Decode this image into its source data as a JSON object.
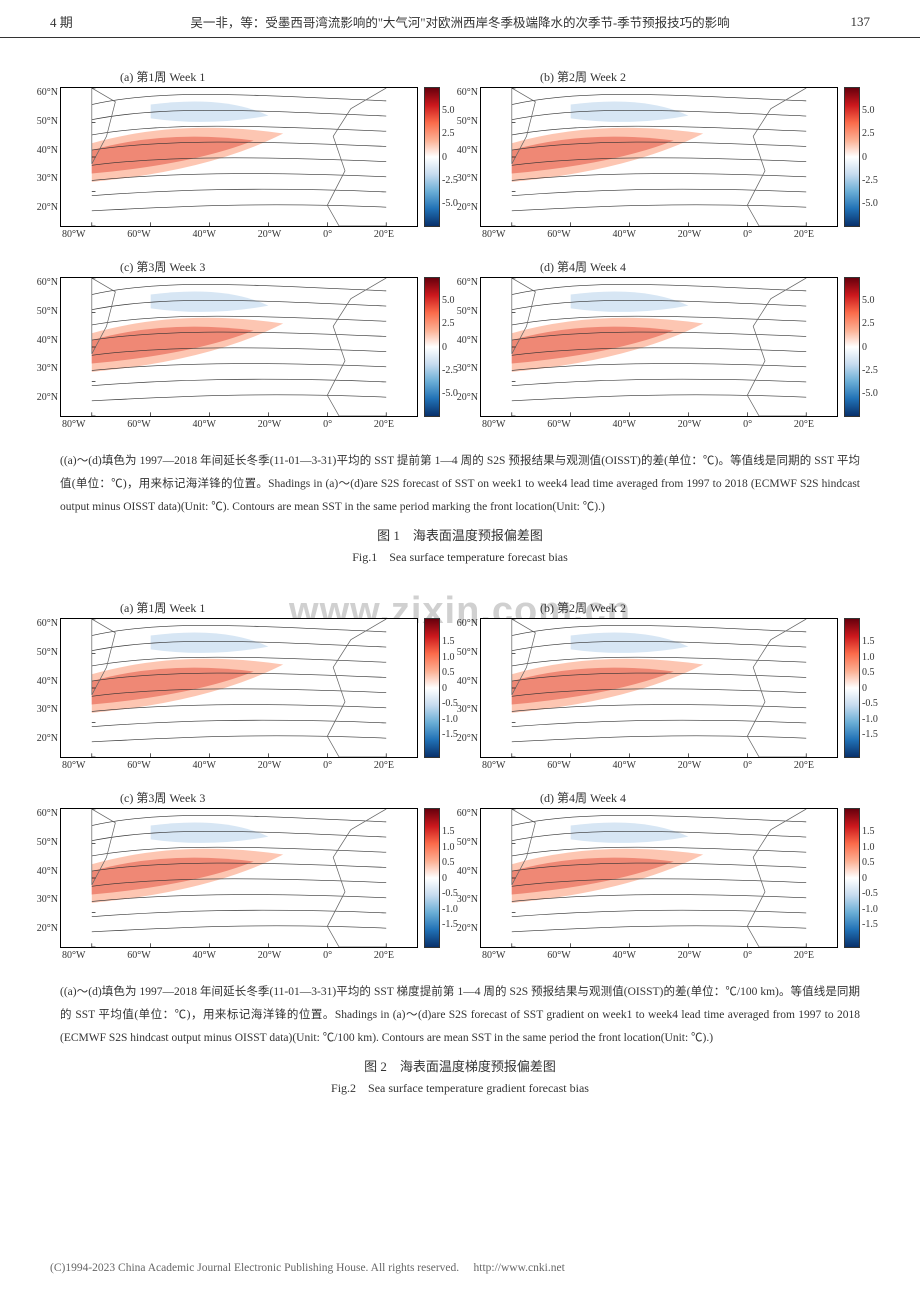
{
  "header": {
    "issue": "4 期",
    "running_title": "吴一非，等：受墨西哥湾流影响的\"大气河\"对欧洲西岸冬季极端降水的次季节-季节预报技巧的影响",
    "page_number": "137"
  },
  "figure1": {
    "panels": [
      {
        "id": "a",
        "label_cn": "(a) 第1周 Week 1"
      },
      {
        "id": "b",
        "label_cn": "(b) 第2周 Week 2"
      },
      {
        "id": "c",
        "label_cn": "(c) 第3周 Week 3"
      },
      {
        "id": "d",
        "label_cn": "(d) 第4周 Week 4"
      }
    ],
    "map": {
      "lon_ticks": [
        "80°W",
        "60°W",
        "40°W",
        "20°W",
        "0°",
        "20°E"
      ],
      "lat_ticks": [
        "60°N",
        "50°N",
        "40°N",
        "30°N",
        "20°N"
      ],
      "xlim": [
        -80,
        20
      ],
      "ylim": [
        20,
        60
      ],
      "contour_color": "#333333",
      "coastline_color": "#666666",
      "background": "#ffffff"
    },
    "colorbar": {
      "ticks": [
        "5.0",
        "2.5",
        "0",
        "-2.5",
        "-5.0"
      ],
      "colors_top_to_bottom": [
        "#67000d",
        "#cb181d",
        "#fb6a4a",
        "#fcae91",
        "#ffffff",
        "#c6dbef",
        "#6baed6",
        "#2171b5",
        "#08306b"
      ],
      "range": [
        -5.0,
        5.0
      ]
    },
    "caption": "((a)～(d)填色为 1997—2018 年间延长冬季(11-01—3-31)平均的 SST 提前第 1—4 周的 S2S 预报结果与观测值(OISST)的差(单位：℃)。等值线是同期的 SST 平均值(单位：℃)，用来标记海洋锋的位置。Shadings in (a)～(d)are S2S forecast of SST on week1 to week4 lead time averaged from 1997 to 2018 (ECMWF S2S hindcast output minus OISST data)(Unit: ℃). Contours are mean SST in the same period marking the front location(Unit: ℃).)",
    "title_cn": "图 1　海表面温度预报偏差图",
    "title_en": "Fig.1　Sea surface temperature forecast bias"
  },
  "figure2": {
    "panels": [
      {
        "id": "a",
        "label_cn": "(a) 第1周 Week 1"
      },
      {
        "id": "b",
        "label_cn": "(b) 第2周 Week 2"
      },
      {
        "id": "c",
        "label_cn": "(c) 第3周 Week 3"
      },
      {
        "id": "d",
        "label_cn": "(d) 第4周 Week 4"
      }
    ],
    "map": {
      "lon_ticks": [
        "80°W",
        "60°W",
        "40°W",
        "20°W",
        "0°",
        "20°E"
      ],
      "lat_ticks": [
        "60°N",
        "50°N",
        "40°N",
        "30°N",
        "20°N"
      ],
      "xlim": [
        -80,
        20
      ],
      "ylim": [
        20,
        60
      ],
      "contour_color": "#333333",
      "background": "#ffffff"
    },
    "colorbar": {
      "ticks": [
        "1.5",
        "1.0",
        "0.5",
        "0",
        "-0.5",
        "-1.0",
        "-1.5"
      ],
      "colors_top_to_bottom": [
        "#67000d",
        "#cb181d",
        "#fb6a4a",
        "#fcae91",
        "#ffffff",
        "#c6dbef",
        "#6baed6",
        "#2171b5",
        "#08306b"
      ],
      "range": [
        -1.5,
        1.5
      ]
    },
    "caption": "((a)～(d)填色为 1997—2018 年间延长冬季(11-01—3-31)平均的 SST 梯度提前第 1—4 周的 S2S 预报结果与观测值(OISST)的差(单位：℃/100 km)。等值线是同期的 SST 平均值(单位：℃)，用来标记海洋锋的位置。Shadings in (a)～(d)are S2S forecast of SST gradient on week1 to week4 lead time averaged from 1997 to 2018 (ECMWF S2S hindcast output minus OISST data)(Unit: ℃/100 km). Contours are mean SST in the same period the front location(Unit: ℃).)",
    "title_cn": "图 2　海表面温度梯度预报偏差图",
    "title_en": "Fig.2　Sea surface temperature gradient forecast bias"
  },
  "watermark": "www.zixin.com.cn",
  "footer": {
    "text": "(C)1994-2023 China Academic Journal Electronic Publishing House. All rights reserved.",
    "url": "http://www.cnki.net"
  }
}
